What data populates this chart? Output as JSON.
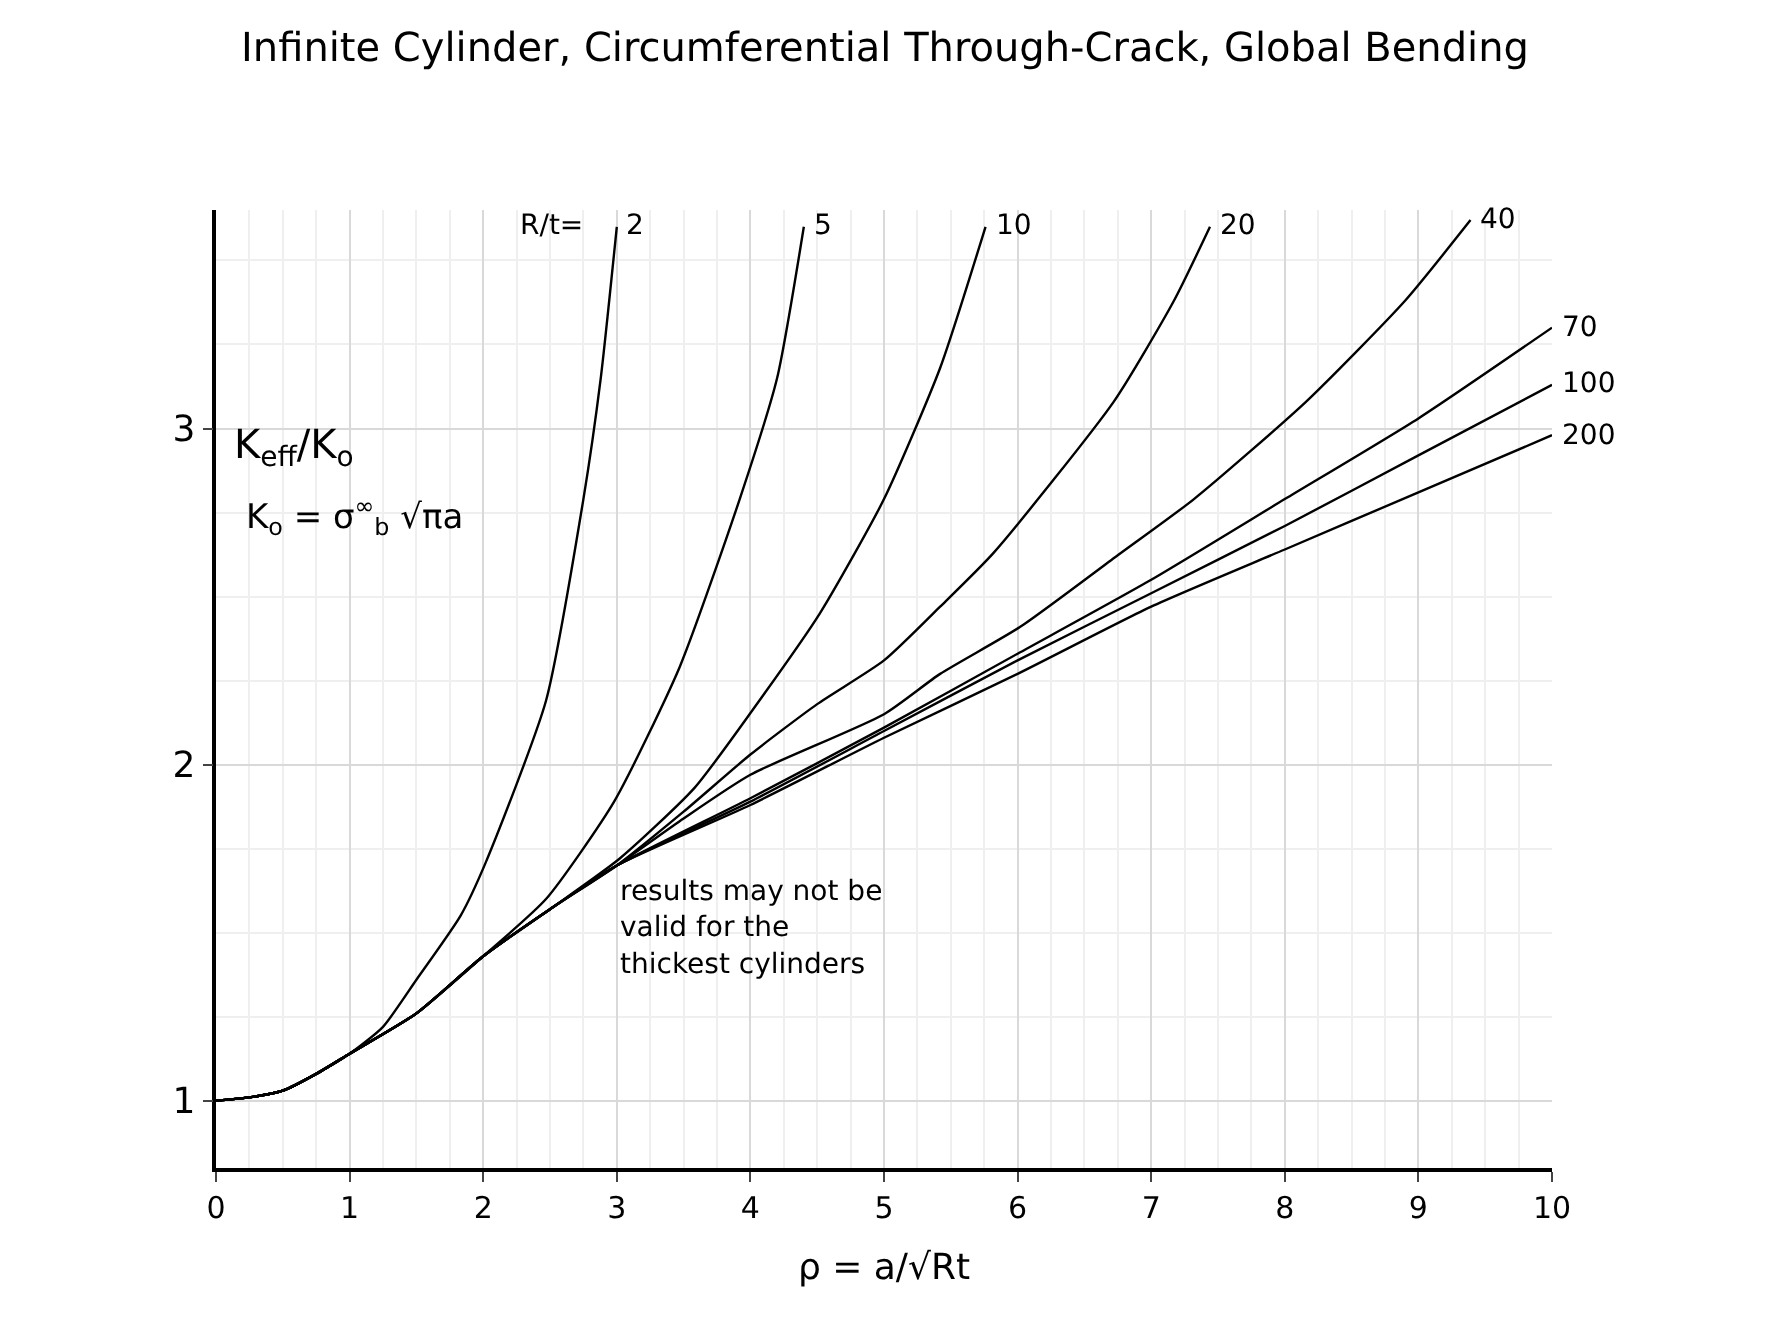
{
  "chart_data": {
    "type": "line",
    "title": "Infinite Cylinder, Circumferential Through-Crack, Global Bending",
    "xlabel": "ρ = a/√Rt",
    "ylabel": "K$_{eff}$/K$_{o}$",
    "legend_title": "R/t=",
    "annotations": [
      "K$_{o}$ = σ$^{∞}$$_{b}$ √πa",
      "results may not be\nvalid for the\nthickest cylinders"
    ],
    "series": [
      {
        "name": "2",
        "color": "#000000",
        "x": [
          0,
          0.25,
          0.5,
          0.75,
          1,
          1.25,
          1.5,
          1.83,
          2.02,
          2.47,
          2.75,
          2.88,
          3.0
        ],
        "values": [
          1,
          1.01,
          1.03,
          1.08,
          1.14,
          1.22,
          1.36,
          1.55,
          1.71,
          2.19,
          2.79,
          3.15,
          3.6
        ]
      },
      {
        "name": "5",
        "color": "#000000",
        "x": [
          0,
          0.25,
          0.5,
          0.75,
          1,
          1.5,
          2,
          2.47,
          2.98,
          3.47,
          3.92,
          4.2,
          4.4
        ],
        "values": [
          1,
          1.01,
          1.03,
          1.08,
          1.14,
          1.26,
          1.43,
          1.6,
          1.89,
          2.29,
          2.79,
          3.15,
          3.6
        ]
      },
      {
        "name": "10",
        "color": "#000000",
        "x": [
          0,
          0.25,
          0.5,
          0.75,
          1,
          1.5,
          2,
          2.5,
          3.02,
          3.58,
          4.03,
          4.52,
          5.0,
          5.42,
          5.76
        ],
        "values": [
          1,
          1.01,
          1.03,
          1.08,
          1.14,
          1.26,
          1.43,
          1.57,
          1.72,
          1.93,
          2.17,
          2.45,
          2.79,
          3.18,
          3.6
        ]
      },
      {
        "name": "20",
        "color": "#000000",
        "x": [
          0,
          0.25,
          0.5,
          0.75,
          1,
          1.5,
          2,
          2.5,
          3,
          3.5,
          4,
          4.5,
          5,
          5.42,
          5.82,
          6.72,
          7.17,
          7.44
        ],
        "values": [
          1,
          1.01,
          1.03,
          1.08,
          1.14,
          1.26,
          1.43,
          1.57,
          1.7,
          1.86,
          2.03,
          2.18,
          2.31,
          2.47,
          2.63,
          3.08,
          3.38,
          3.6
        ]
      },
      {
        "name": "40",
        "color": "#000000",
        "x": [
          0,
          0.25,
          0.5,
          0.75,
          1,
          1.5,
          2,
          2.5,
          3,
          3.5,
          4,
          5,
          5.42,
          6.02,
          6.74,
          7.32,
          8.16,
          8.9,
          9.39
        ],
        "values": [
          1,
          1.01,
          1.03,
          1.08,
          1.14,
          1.26,
          1.43,
          1.57,
          1.7,
          1.84,
          1.97,
          2.15,
          2.27,
          2.41,
          2.62,
          2.79,
          3.08,
          3.38,
          3.62
        ]
      },
      {
        "name": "70",
        "color": "#000000",
        "x": [
          0,
          0.25,
          0.5,
          0.75,
          1,
          1.5,
          2,
          2.5,
          3,
          4,
          5,
          6,
          7,
          8,
          9,
          10
        ],
        "values": [
          1,
          1.01,
          1.03,
          1.08,
          1.14,
          1.26,
          1.43,
          1.57,
          1.7,
          1.9,
          2.11,
          2.33,
          2.55,
          2.79,
          3.03,
          3.3
        ]
      },
      {
        "name": "100",
        "color": "#000000",
        "x": [
          0,
          0.25,
          0.5,
          0.75,
          1,
          1.5,
          2,
          2.5,
          3,
          4,
          5,
          6,
          7,
          8,
          9,
          10
        ],
        "values": [
          1,
          1.01,
          1.03,
          1.08,
          1.14,
          1.26,
          1.43,
          1.57,
          1.7,
          1.89,
          2.1,
          2.31,
          2.51,
          2.71,
          2.92,
          3.13
        ]
      },
      {
        "name": "200",
        "color": "#000000",
        "x": [
          0,
          0.25,
          0.5,
          0.75,
          1,
          1.5,
          2,
          2.5,
          3,
          4,
          5,
          6,
          7,
          8,
          9,
          10
        ],
        "values": [
          1,
          1.01,
          1.03,
          1.08,
          1.14,
          1.26,
          1.43,
          1.57,
          1.7,
          1.88,
          2.08,
          2.27,
          2.47,
          2.64,
          2.81,
          2.98
        ]
      }
    ],
    "xlim": [
      0,
      10
    ],
    "xticks": [
      0,
      1,
      2,
      3,
      4,
      5,
      6,
      7,
      8,
      9,
      10
    ],
    "ylim": [
      0.8,
      3.65
    ],
    "yticks": [
      1,
      2,
      3
    ],
    "grid": true,
    "legend": false,
    "marker": "none",
    "line_style": "solid"
  }
}
